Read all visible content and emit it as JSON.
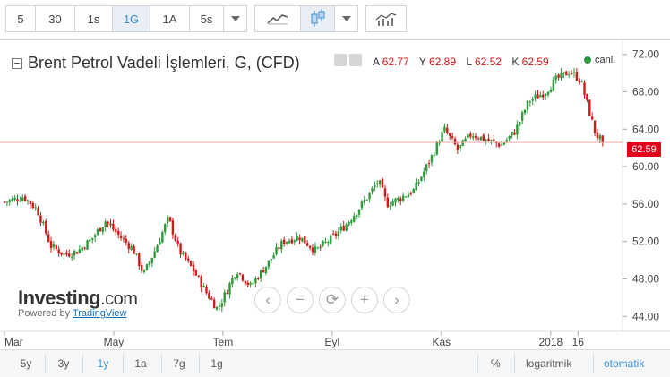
{
  "toolbar": {
    "intervals": [
      "5",
      "30",
      "1s",
      "1G",
      "1A",
      "5s"
    ],
    "active_interval": "1G",
    "dropdown_icon": "chevron-down-icon",
    "style_icons": [
      "line-chart-icon",
      "candlestick-icon",
      "indicators-icon"
    ]
  },
  "legend": {
    "title": "Brent Petrol Vadeli İşlemleri, G, (CFD)",
    "ohlc": [
      {
        "key": "A",
        "value": "62.77"
      },
      {
        "key": "Y",
        "value": "62.89"
      },
      {
        "key": "L",
        "value": "62.52"
      },
      {
        "key": "K",
        "value": "62.59"
      }
    ],
    "live_label": "canlı"
  },
  "last_price_tag": "62.59",
  "zoom_controls": [
    "‹",
    "−",
    "⟳",
    "+",
    "›"
  ],
  "logo": {
    "main": "Investing",
    "tail": ".com",
    "powered": "Powered by",
    "tradingview": "TradingView"
  },
  "range_bar": {
    "ranges": [
      "5y",
      "3y",
      "1y",
      "1a",
      "7g",
      "1g"
    ],
    "active_range": "1y",
    "percent": "%",
    "log": "logaritmik",
    "auto": "otomatik"
  },
  "colors": {
    "up": "#2e9a3b",
    "down": "#d0191b",
    "last_price_line": "#f2a2a2",
    "accent": "#3a8fd6"
  },
  "chart_data": {
    "type": "candlestick",
    "y_ticks": [
      44,
      48,
      52,
      56,
      60,
      64,
      68,
      72
    ],
    "ylim": [
      42.4,
      73.5
    ],
    "x_ticks": [
      "Mar",
      "May",
      "Tem",
      "Eyl",
      "Kas",
      "2018",
      "16"
    ],
    "x_tick_months": [
      0,
      2,
      4,
      6,
      8,
      10,
      10.5
    ],
    "last_price": 62.59,
    "grid": false,
    "series_anchors": [
      {
        "m": 0.0,
        "v": 56.2
      },
      {
        "m": 0.35,
        "v": 56.8
      },
      {
        "m": 0.6,
        "v": 55.4
      },
      {
        "m": 0.85,
        "v": 51.5
      },
      {
        "m": 1.1,
        "v": 50.6
      },
      {
        "m": 1.35,
        "v": 51.0
      },
      {
        "m": 1.6,
        "v": 52.3
      },
      {
        "m": 1.85,
        "v": 54.2
      },
      {
        "m": 2.1,
        "v": 52.6
      },
      {
        "m": 2.35,
        "v": 51.2
      },
      {
        "m": 2.55,
        "v": 48.5
      },
      {
        "m": 2.75,
        "v": 51.0
      },
      {
        "m": 3.0,
        "v": 54.5
      },
      {
        "m": 3.2,
        "v": 51.0
      },
      {
        "m": 3.45,
        "v": 49.0
      },
      {
        "m": 3.7,
        "v": 46.5
      },
      {
        "m": 3.9,
        "v": 44.8
      },
      {
        "m": 4.05,
        "v": 46.5
      },
      {
        "m": 4.25,
        "v": 49.0
      },
      {
        "m": 4.5,
        "v": 47.2
      },
      {
        "m": 4.8,
        "v": 49.5
      },
      {
        "m": 5.1,
        "v": 52.0
      },
      {
        "m": 5.4,
        "v": 52.5
      },
      {
        "m": 5.7,
        "v": 51.0
      },
      {
        "m": 6.0,
        "v": 52.4
      },
      {
        "m": 6.25,
        "v": 53.8
      },
      {
        "m": 6.55,
        "v": 56.0
      },
      {
        "m": 6.85,
        "v": 58.5
      },
      {
        "m": 7.0,
        "v": 56.0
      },
      {
        "m": 7.2,
        "v": 56.5
      },
      {
        "m": 7.5,
        "v": 57.5
      },
      {
        "m": 7.8,
        "v": 60.8
      },
      {
        "m": 8.05,
        "v": 64.0
      },
      {
        "m": 8.3,
        "v": 61.8
      },
      {
        "m": 8.55,
        "v": 63.5
      },
      {
        "m": 8.85,
        "v": 62.8
      },
      {
        "m": 9.1,
        "v": 62.3
      },
      {
        "m": 9.35,
        "v": 63.8
      },
      {
        "m": 9.6,
        "v": 67.0
      },
      {
        "m": 9.9,
        "v": 68.0
      },
      {
        "m": 10.1,
        "v": 69.3
      },
      {
        "m": 10.35,
        "v": 70.2
      },
      {
        "m": 10.55,
        "v": 69.2
      },
      {
        "m": 10.7,
        "v": 66.0
      },
      {
        "m": 10.82,
        "v": 63.5
      },
      {
        "m": 10.95,
        "v": 62.59
      }
    ]
  }
}
